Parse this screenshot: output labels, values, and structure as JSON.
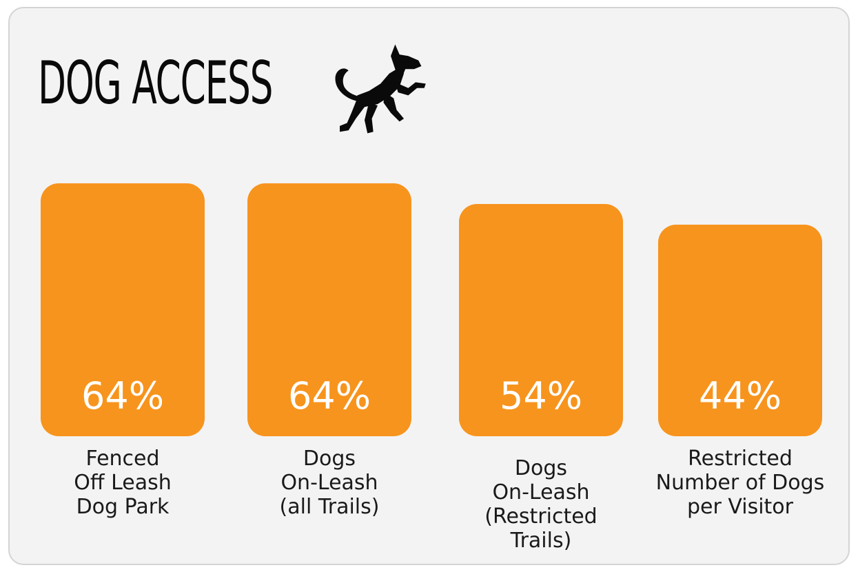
{
  "chart_data": {
    "type": "bar",
    "title": "DOG ACCESS",
    "categories": [
      "Fenced\nOff Leash\nDog Park",
      "Dogs\nOn-Leash\n(all Trails)",
      "Dogs\nOn-Leash\n(Restricted\nTrails)",
      "Restricted\nNumber of Dogs\nper Visitor"
    ],
    "values": [
      64,
      64,
      54,
      44
    ],
    "value_labels": [
      "64%",
      "64%",
      "54%",
      "44%"
    ],
    "unit": "%",
    "bar_color": "#f7941d",
    "grid": false,
    "legend": "none"
  },
  "colors": {
    "card_background": "#f3f3f3",
    "card_border": "#d4d4d4",
    "title": "#0a0a0a",
    "bar": "#f7941d",
    "bar_value_text": "#ffffff",
    "label_text": "#1a1a1a"
  },
  "icons": {
    "title_icon": "jumping-dog-icon"
  }
}
